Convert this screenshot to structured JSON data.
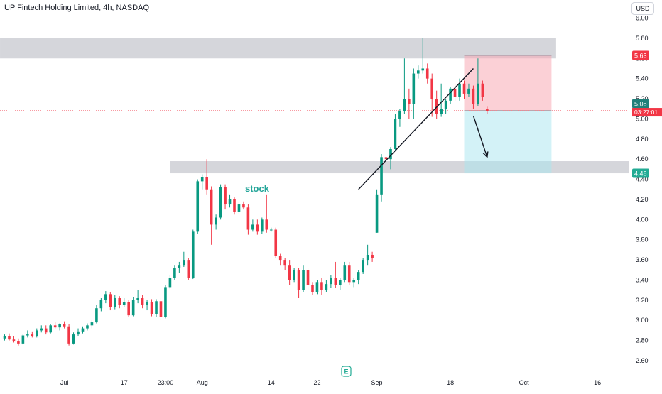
{
  "header": {
    "title": "UP Fintech Holding Limited, 4h, NASDAQ",
    "currency": "USD"
  },
  "colors": {
    "up": "#089981",
    "down": "#f23645",
    "zone": "#b2b5be",
    "short_risk": "#f7a9b4",
    "short_target": "#a8e6f0",
    "axis_text": "#131722",
    "price_line": "#f23645"
  },
  "chart_data": {
    "type": "candlestick",
    "title": "UP Fintech Holding Limited, 4h, NASDAQ",
    "y_axis": {
      "ylim": [
        2.48,
        6.1
      ],
      "ticks": [
        2.6,
        2.8,
        3.0,
        3.2,
        3.4,
        3.6,
        3.8,
        4.0,
        4.2,
        4.4,
        4.6,
        4.8,
        5.0,
        5.2,
        5.4,
        5.6,
        5.8,
        6.0
      ]
    },
    "x_axis": {
      "tick_labels": [
        "Jul",
        "17",
        "23:00",
        "Aug",
        "14",
        "22",
        "Sep",
        "18",
        "Oct",
        "16"
      ],
      "tick_bar_index": [
        13,
        26,
        35,
        43,
        58,
        68,
        81,
        97,
        113,
        129
      ]
    },
    "candles": [
      [
        2.82,
        2.86,
        2.8,
        2.84
      ],
      [
        2.84,
        2.87,
        2.8,
        2.81
      ],
      [
        2.81,
        2.84,
        2.78,
        2.79
      ],
      [
        2.79,
        2.82,
        2.75,
        2.77
      ],
      [
        2.77,
        2.86,
        2.76,
        2.85
      ],
      [
        2.85,
        2.9,
        2.83,
        2.86
      ],
      [
        2.86,
        2.89,
        2.83,
        2.84
      ],
      [
        2.84,
        2.92,
        2.83,
        2.9
      ],
      [
        2.9,
        2.95,
        2.88,
        2.92
      ],
      [
        2.92,
        2.95,
        2.86,
        2.88
      ],
      [
        2.88,
        2.96,
        2.87,
        2.95
      ],
      [
        2.95,
        2.98,
        2.92,
        2.93
      ],
      [
        2.93,
        2.97,
        2.9,
        2.96
      ],
      [
        2.96,
        2.99,
        2.92,
        2.94
      ],
      [
        2.94,
        2.96,
        2.75,
        2.77
      ],
      [
        2.77,
        2.88,
        2.76,
        2.86
      ],
      [
        2.86,
        2.92,
        2.84,
        2.89
      ],
      [
        2.89,
        2.94,
        2.87,
        2.92
      ],
      [
        2.92,
        2.97,
        2.9,
        2.95
      ],
      [
        2.95,
        3.0,
        2.92,
        2.98
      ],
      [
        2.98,
        3.15,
        2.97,
        3.12
      ],
      [
        3.12,
        3.22,
        3.09,
        3.2
      ],
      [
        3.2,
        3.29,
        3.17,
        3.26
      ],
      [
        3.26,
        3.28,
        3.1,
        3.13
      ],
      [
        3.13,
        3.25,
        3.11,
        3.22
      ],
      [
        3.22,
        3.24,
        3.12,
        3.15
      ],
      [
        3.15,
        3.22,
        3.13,
        3.18
      ],
      [
        3.18,
        3.2,
        3.03,
        3.05
      ],
      [
        3.05,
        3.23,
        3.04,
        3.2
      ],
      [
        3.2,
        3.3,
        3.17,
        3.22
      ],
      [
        3.22,
        3.25,
        3.12,
        3.15
      ],
      [
        3.15,
        3.2,
        3.1,
        3.18
      ],
      [
        3.18,
        3.21,
        3.04,
        3.06
      ],
      [
        3.06,
        3.21,
        3.03,
        3.19
      ],
      [
        3.19,
        3.22,
        3.0,
        3.03
      ],
      [
        3.03,
        3.35,
        3.02,
        3.33
      ],
      [
        3.33,
        3.45,
        3.31,
        3.42
      ],
      [
        3.42,
        3.55,
        3.4,
        3.52
      ],
      [
        3.52,
        3.58,
        3.47,
        3.55
      ],
      [
        3.55,
        3.68,
        3.53,
        3.6
      ],
      [
        3.6,
        3.62,
        3.4,
        3.42
      ],
      [
        3.42,
        3.9,
        3.41,
        3.88
      ],
      [
        3.88,
        4.4,
        3.86,
        4.38
      ],
      [
        4.38,
        4.45,
        4.3,
        4.42
      ],
      [
        4.42,
        4.6,
        4.25,
        4.3
      ],
      [
        4.3,
        4.33,
        3.75,
        3.95
      ],
      [
        3.95,
        4.05,
        3.9,
        4.02
      ],
      [
        4.02,
        4.35,
        4.0,
        4.32
      ],
      [
        4.32,
        4.35,
        4.1,
        4.15
      ],
      [
        4.15,
        4.25,
        4.12,
        4.2
      ],
      [
        4.2,
        4.22,
        4.05,
        4.08
      ],
      [
        4.08,
        4.18,
        4.05,
        4.15
      ],
      [
        4.15,
        4.18,
        4.1,
        4.12
      ],
      [
        4.12,
        4.15,
        3.85,
        3.9
      ],
      [
        3.9,
        4.0,
        3.88,
        3.95
      ],
      [
        3.95,
        4.0,
        3.85,
        3.88
      ],
      [
        3.88,
        4.02,
        3.86,
        4.0
      ],
      [
        4.0,
        4.25,
        3.87,
        3.9
      ],
      [
        3.9,
        3.92,
        3.88,
        3.9
      ],
      [
        3.9,
        3.92,
        3.62,
        3.64
      ],
      [
        3.64,
        3.66,
        3.55,
        3.6
      ],
      [
        3.6,
        3.62,
        3.5,
        3.55
      ],
      [
        3.55,
        3.6,
        3.35,
        3.4
      ],
      [
        3.4,
        3.52,
        3.38,
        3.5
      ],
      [
        3.5,
        3.52,
        3.22,
        3.3
      ],
      [
        3.3,
        3.55,
        3.28,
        3.5
      ],
      [
        3.5,
        3.52,
        3.3,
        3.35
      ],
      [
        3.35,
        3.38,
        3.25,
        3.28
      ],
      [
        3.28,
        3.4,
        3.26,
        3.38
      ],
      [
        3.38,
        3.42,
        3.25,
        3.3
      ],
      [
        3.3,
        3.4,
        3.28,
        3.36
      ],
      [
        3.36,
        3.45,
        3.32,
        3.42
      ],
      [
        3.42,
        3.58,
        3.32,
        3.35
      ],
      [
        3.35,
        3.42,
        3.3,
        3.4
      ],
      [
        3.4,
        3.58,
        3.38,
        3.55
      ],
      [
        3.55,
        3.58,
        3.35,
        3.38
      ],
      [
        3.38,
        3.42,
        3.33,
        3.4
      ],
      [
        3.4,
        3.5,
        3.36,
        3.48
      ],
      [
        3.48,
        3.62,
        3.46,
        3.6
      ],
      [
        3.6,
        3.75,
        3.55,
        3.65
      ],
      [
        3.65,
        3.68,
        3.58,
        3.62
      ],
      [
        3.87,
        4.3,
        3.87,
        4.25
      ],
      [
        4.25,
        4.65,
        4.18,
        4.62
      ],
      [
        4.62,
        4.72,
        4.55,
        4.6
      ],
      [
        4.6,
        4.72,
        4.5,
        4.7
      ],
      [
        4.7,
        5.05,
        4.68,
        5.0
      ],
      [
        5.0,
        5.1,
        4.92,
        5.08
      ],
      [
        5.08,
        5.6,
        5.05,
        5.2
      ],
      [
        5.2,
        5.3,
        5.0,
        5.15
      ],
      [
        5.15,
        5.5,
        5.0,
        5.45
      ],
      [
        5.45,
        5.53,
        5.4,
        5.48
      ],
      [
        5.48,
        5.8,
        5.45,
        5.5
      ],
      [
        5.5,
        5.55,
        5.35,
        5.4
      ],
      [
        5.4,
        5.45,
        5.02,
        5.2
      ],
      [
        5.2,
        5.28,
        5.0,
        5.05
      ],
      [
        5.05,
        5.35,
        5.02,
        5.1
      ],
      [
        5.1,
        5.2,
        5.05,
        5.18
      ],
      [
        5.18,
        5.32,
        5.15,
        5.3
      ],
      [
        5.3,
        5.35,
        5.18,
        5.22
      ],
      [
        5.22,
        5.4,
        5.18,
        5.35
      ],
      [
        5.35,
        5.38,
        5.2,
        5.25
      ],
      [
        5.25,
        5.35,
        5.22,
        5.3
      ],
      [
        5.3,
        5.33,
        5.1,
        5.15
      ],
      [
        5.15,
        5.6,
        5.13,
        5.35
      ],
      [
        5.35,
        5.38,
        5.18,
        5.22
      ],
      [
        5.1,
        5.12,
        5.05,
        5.08
      ]
    ],
    "zones": [
      {
        "name": "resistance",
        "from_bar": -1,
        "to_bar": 120,
        "ymin": 5.6,
        "ymax": 5.8
      },
      {
        "name": "support",
        "from_bar": 36,
        "to_bar": 136,
        "ymin": 4.46,
        "ymax": 4.58
      }
    ],
    "position": {
      "from_bar": 100,
      "to_bar": 119,
      "entry": 5.08,
      "stop": 5.63,
      "target": 4.46
    },
    "trendline": {
      "from": [
        77,
        4.3
      ],
      "to": [
        102,
        5.5
      ]
    },
    "arrow": {
      "from": [
        102,
        5.03
      ],
      "to": [
        105,
        4.62
      ]
    },
    "annotation_text": "stock",
    "price_labels": {
      "stop": "5.63",
      "current": "5.08",
      "timer": "03:27:01",
      "target": "4.46"
    }
  }
}
